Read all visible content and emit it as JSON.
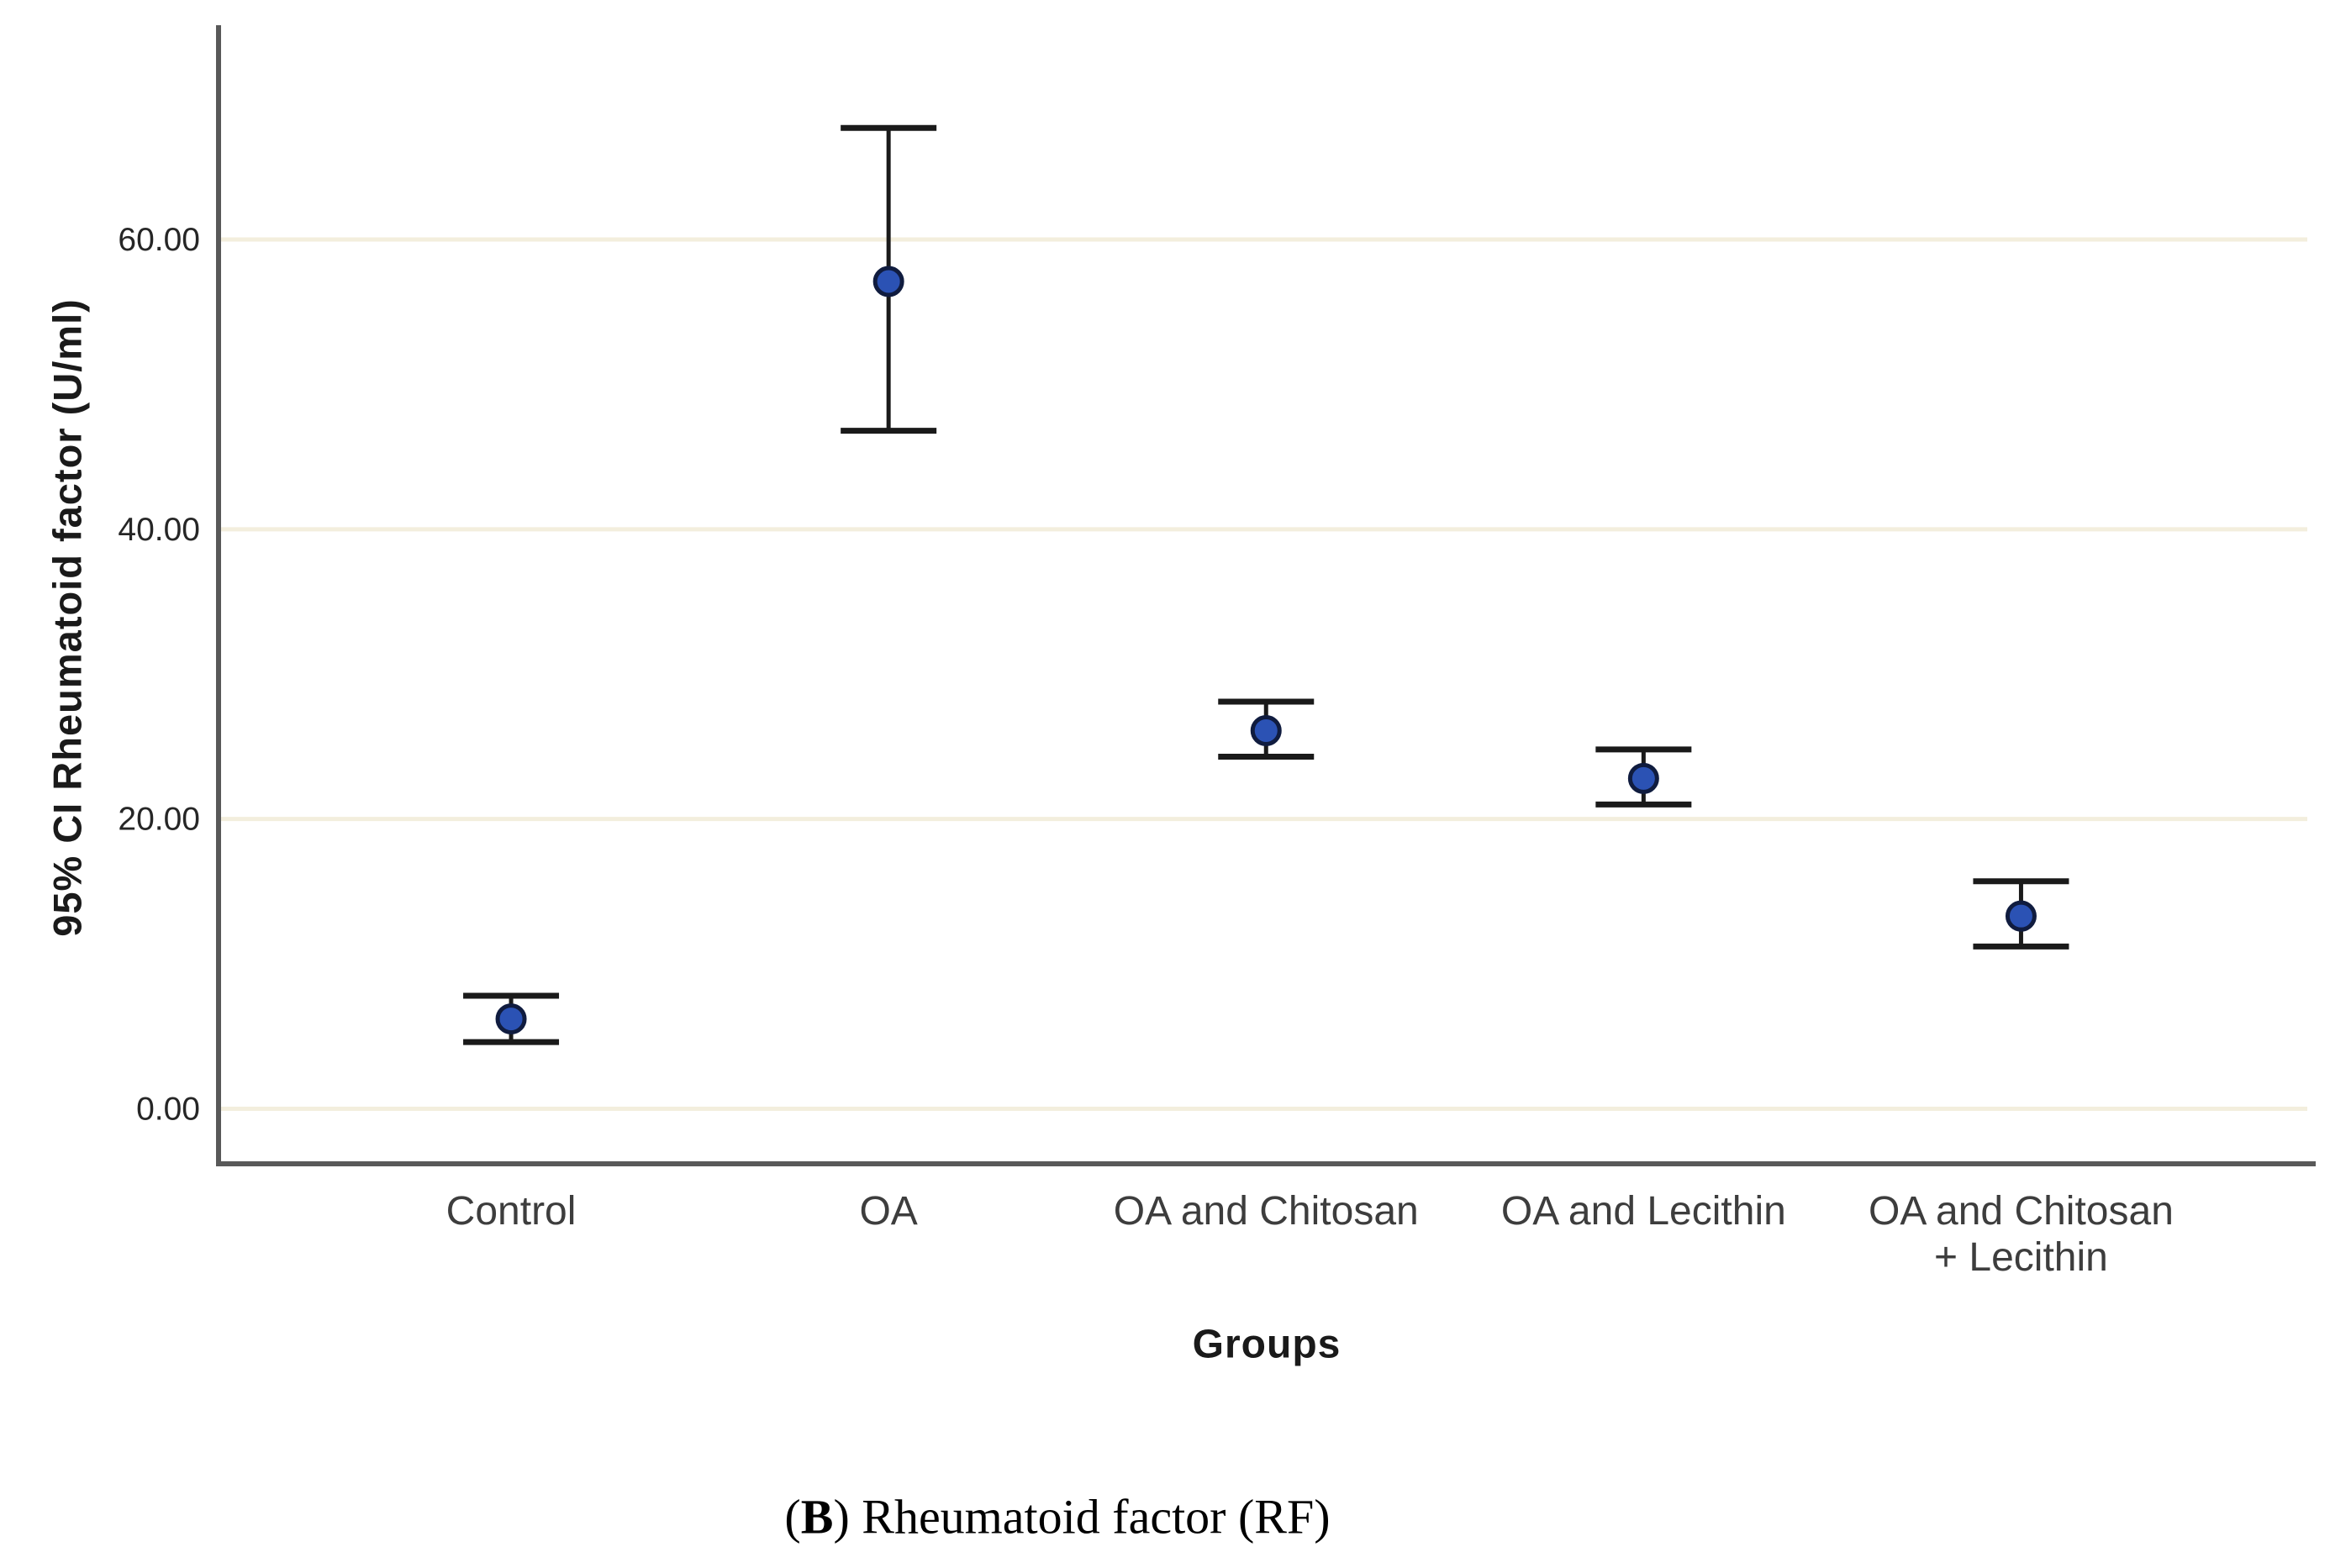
{
  "chart_data": {
    "type": "errorbar-point",
    "title": "",
    "xlabel": "Groups",
    "ylabel": "95% CI Rheumatoid factor (U/ml)",
    "categories": [
      "Control",
      "OA",
      "OA and Chitosan",
      "OA and Lecithin",
      "OA and Chitosan\n+ Lecithin"
    ],
    "series": [
      {
        "name": "95% CI Rheumatoid factor",
        "means": [
          6.2,
          57.1,
          26.1,
          22.8,
          13.3
        ],
        "ci_low": [
          4.6,
          46.8,
          24.3,
          21.0,
          11.2
        ],
        "ci_high": [
          7.8,
          67.7,
          28.1,
          24.8,
          15.7
        ]
      }
    ],
    "yticks": {
      "values": [
        0,
        20,
        40,
        60
      ],
      "labels": [
        "0.00",
        "20.00",
        "40.00",
        "60.00"
      ]
    },
    "ylim": [
      -3.8,
      74.5
    ],
    "grid": "horizontal",
    "legend": "none",
    "colors": {
      "background": "#ffffff",
      "gridline": "#f3eedd",
      "axis": "#595959",
      "errorbar": "#1a1a1a",
      "point_fill": "#2b52b4",
      "point_stroke": "#101c3f",
      "tick_text": "#262626",
      "category_text": "#3d3d3d"
    }
  },
  "caption": {
    "open": "(",
    "bold": "B",
    "rest": ") Rheumatoid factor (RF)"
  }
}
